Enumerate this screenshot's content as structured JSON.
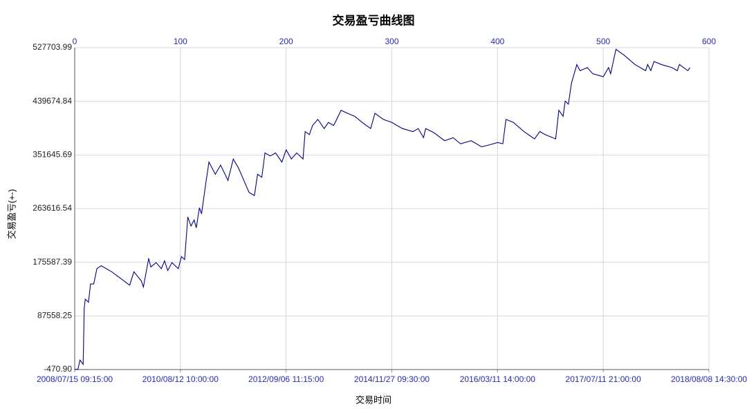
{
  "chart_data": {
    "type": "line",
    "title": "交易盈亏曲线图",
    "xlabel": "交易时间",
    "ylabel": "交易盈亏(+-)",
    "color": "#000080",
    "grid": true,
    "xlim": [
      0,
      600
    ],
    "xticks": [
      0,
      100,
      200,
      300,
      400,
      500,
      600
    ],
    "x2ticks": [
      {
        "value": 0,
        "label": "2008/07/15 09:15:00"
      },
      {
        "value": 100,
        "label": "2010/08/12 10:00:00"
      },
      {
        "value": 200,
        "label": "2012/09/06 11:15:00"
      },
      {
        "value": 300,
        "label": "2014/11/27 09:30:00"
      },
      {
        "value": 400,
        "label": "2016/03/11 14:00:00"
      },
      {
        "value": 500,
        "label": "2017/07/11 21:00:00"
      },
      {
        "value": 600,
        "label": "2018/08/08 14:30:00"
      }
    ],
    "ylim": [
      -470.9,
      527703.99
    ],
    "yticks": [
      {
        "value": -470.9,
        "label": "-470.90"
      },
      {
        "value": 87558.25,
        "label": "87558.25"
      },
      {
        "value": 175587.39,
        "label": "175587.39"
      },
      {
        "value": 263616.54,
        "label": "263616.54"
      },
      {
        "value": 351645.69,
        "label": "351645.69"
      },
      {
        "value": 439674.84,
        "label": "439674.84"
      },
      {
        "value": 527703.99,
        "label": "527703.99"
      }
    ],
    "x": [
      0,
      3,
      5,
      8,
      9,
      10,
      13,
      15,
      18,
      21,
      25,
      35,
      52,
      56,
      63,
      65,
      70,
      72,
      77,
      82,
      85,
      88,
      92,
      98,
      101,
      104,
      107,
      110,
      113,
      115,
      118,
      120,
      124,
      127,
      133,
      138,
      145,
      150,
      155,
      160,
      165,
      170,
      173,
      177,
      180,
      185,
      190,
      196,
      200,
      205,
      210,
      216,
      218,
      222,
      225,
      230,
      236,
      240,
      245,
      252,
      258,
      265,
      272,
      280,
      284,
      292,
      300,
      310,
      320,
      325,
      330,
      332,
      340,
      350,
      358,
      365,
      375,
      385,
      392,
      400,
      405,
      408,
      415,
      425,
      435,
      440,
      445,
      455,
      458,
      462,
      464,
      467,
      470,
      475,
      478,
      485,
      490,
      500,
      505,
      507,
      512,
      520,
      530,
      540,
      542,
      545,
      548,
      555,
      565,
      570,
      572,
      580,
      582
    ],
    "values": [
      0,
      -400,
      15000,
      8000,
      100000,
      115000,
      110000,
      140000,
      140000,
      165000,
      170000,
      160000,
      138000,
      160000,
      145000,
      135000,
      182000,
      168000,
      175000,
      165000,
      178000,
      162000,
      175000,
      165000,
      185000,
      180000,
      250000,
      235000,
      245000,
      232000,
      265000,
      255000,
      305000,
      340000,
      320000,
      335000,
      310000,
      345000,
      330000,
      310000,
      290000,
      285000,
      320000,
      315000,
      355000,
      350000,
      355000,
      340000,
      360000,
      345000,
      355000,
      345000,
      390000,
      385000,
      400000,
      410000,
      395000,
      405000,
      400000,
      425000,
      420000,
      415000,
      405000,
      395000,
      420000,
      410000,
      405000,
      395000,
      390000,
      395000,
      380000,
      395000,
      388000,
      375000,
      380000,
      370000,
      375000,
      365000,
      368000,
      372000,
      370000,
      410000,
      405000,
      390000,
      378000,
      390000,
      385000,
      378000,
      425000,
      415000,
      440000,
      435000,
      470000,
      500000,
      490000,
      495000,
      485000,
      480000,
      495000,
      485000,
      525000,
      515000,
      500000,
      490000,
      500000,
      490000,
      505000,
      500000,
      495000,
      490000,
      500000,
      490000,
      495000
    ]
  }
}
